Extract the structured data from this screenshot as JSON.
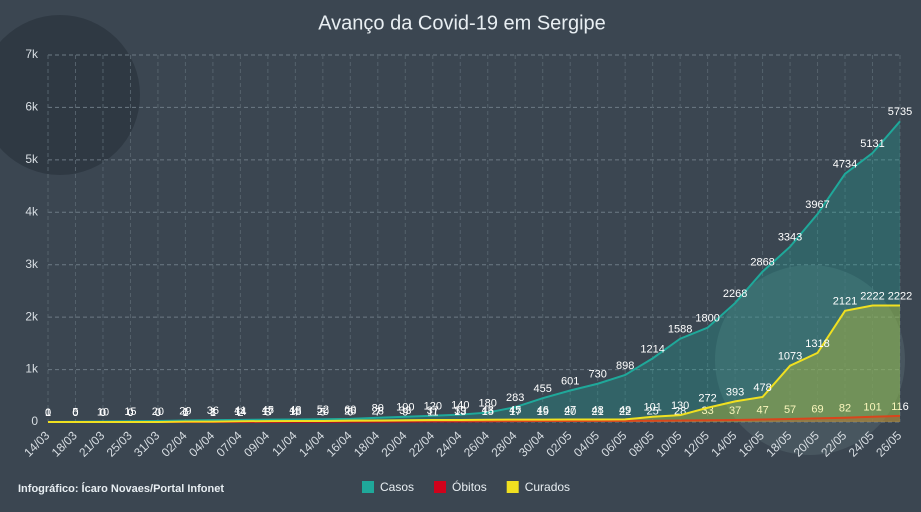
{
  "chart_data": {
    "type": "line",
    "title": "Avanço da Covid-19 em Sergipe",
    "footer": "Infográfico: Ícaro Novaes/Portal Infonet",
    "categories": [
      "14/03",
      "18/03",
      "21/03",
      "25/03",
      "31/03",
      "02/04",
      "04/04",
      "07/04",
      "09/04",
      "11/04",
      "14/04",
      "16/04",
      "18/04",
      "20/04",
      "22/04",
      "24/04",
      "26/04",
      "28/04",
      "30/04",
      "02/05",
      "04/05",
      "06/05",
      "08/05",
      "10/05",
      "12/05",
      "14/05",
      "16/05",
      "18/05",
      "20/05",
      "22/05",
      "24/05",
      "26/05"
    ],
    "series": [
      {
        "name": "Casos",
        "color": "#1fa89a",
        "values": [
          1,
          5,
          10,
          15,
          20,
          29,
          36,
          41,
          45,
          48,
          52,
          60,
          80,
          100,
          120,
          140,
          180,
          283,
          455,
          601,
          730,
          898,
          1214,
          1588,
          1800,
          2268,
          2868,
          3343,
          3967,
          4734,
          5131,
          5735
        ]
      },
      {
        "name": "Óbitos",
        "color": "#d0021b",
        "values": [
          0,
          0,
          0,
          0,
          0,
          1,
          1,
          2,
          3,
          4,
          5,
          6,
          7,
          9,
          11,
          13,
          15,
          17,
          19,
          20,
          21,
          22,
          25,
          28,
          33,
          37,
          47,
          57,
          69,
          82,
          101,
          116
        ]
      },
      {
        "name": "Curados",
        "color": "#f0e020",
        "values": [
          0,
          0,
          0,
          0,
          0,
          6,
          8,
          14,
          17,
          18,
          20,
          26,
          28,
          33,
          37,
          39,
          43,
          45,
          46,
          47,
          48,
          49,
          101,
          130,
          272,
          393,
          478,
          1073,
          1318,
          2121,
          2222,
          2222
        ]
      }
    ],
    "ylim": [
      0,
      7000
    ],
    "yticks": [
      0,
      {
        "value": 1000,
        "label": "1k"
      },
      {
        "value": 2000,
        "label": "2k"
      },
      {
        "value": 3000,
        "label": "3k"
      },
      {
        "value": 4000,
        "label": "4k"
      },
      {
        "value": 5000,
        "label": "5k"
      },
      {
        "value": 6000,
        "label": "6k"
      },
      {
        "value": 7000,
        "label": "7k"
      }
    ],
    "grid": true
  }
}
